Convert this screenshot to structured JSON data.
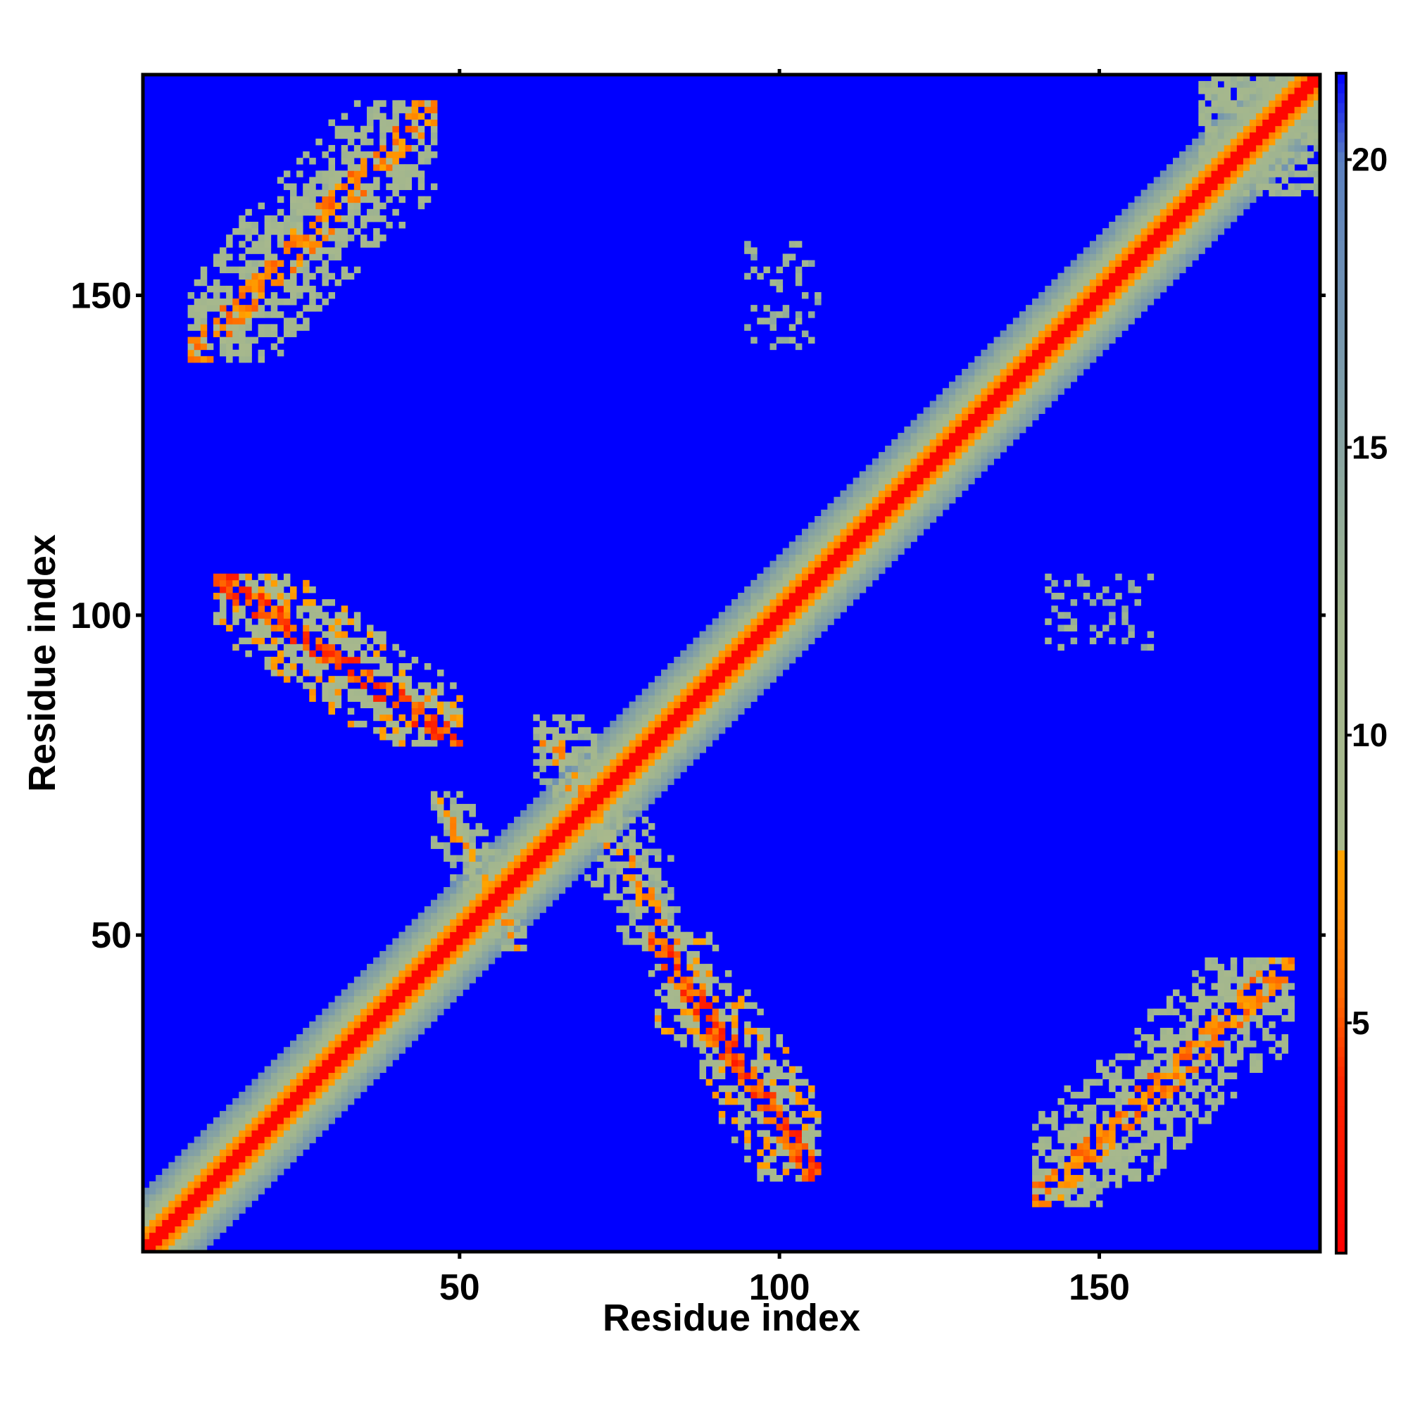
{
  "chart_data": {
    "type": "heatmap",
    "title": "",
    "xlabel": "Residue index",
    "ylabel": "Residue index",
    "n_residues": 184,
    "xlim": [
      1,
      184
    ],
    "ylim": [
      1,
      184
    ],
    "x_ticks": [
      50,
      100,
      150
    ],
    "y_ticks": [
      50,
      100,
      150
    ],
    "colorbar": {
      "range": [
        1,
        21.5
      ],
      "ticks": [
        5,
        10,
        15,
        20
      ],
      "stops": [
        {
          "value": 1,
          "color": "#ff0000"
        },
        {
          "value": 4,
          "color": "#ff2600"
        },
        {
          "value": 5.5,
          "color": "#ff6a00"
        },
        {
          "value": 8,
          "color": "#ffa500"
        },
        {
          "value": 8.01,
          "color": "#a9b98c"
        },
        {
          "value": 12,
          "color": "#a2b68e"
        },
        {
          "value": 16,
          "color": "#7f9ea8"
        },
        {
          "value": 20,
          "color": "#5a7fc0"
        },
        {
          "value": 21.5,
          "color": "#0000ff"
        }
      ]
    },
    "background_value": 21.5,
    "diagonal_band": {
      "core_halfwidth": 1.2,
      "mid_halfwidth": 3.5,
      "outer_halfwidth": 9
    },
    "contact_regions": [
      {
        "name": "N-C terminal (upper-left)",
        "x_range": [
          8,
          46
        ],
        "y_range": [
          140,
          180
        ],
        "orientation": "parallel",
        "mean_distance": 11
      },
      {
        "name": "N-C terminal (lower-right)",
        "x_range": [
          140,
          180
        ],
        "y_range": [
          8,
          46
        ],
        "orientation": "parallel",
        "mean_distance": 11
      },
      {
        "name": "anti-parallel upper-left",
        "x_range": [
          12,
          50
        ],
        "y_range": [
          80,
          106
        ],
        "orientation": "antiparallel",
        "mean_distance": 9
      },
      {
        "name": "anti-parallel lower-right",
        "x_range": [
          80,
          106
        ],
        "y_range": [
          12,
          50
        ],
        "orientation": "antiparallel",
        "mean_distance": 9
      },
      {
        "name": "cross region 1",
        "x_range": [
          46,
          60
        ],
        "y_range": [
          48,
          72
        ],
        "orientation": "antiparallel",
        "mean_distance": 12
      },
      {
        "name": "cross region 2",
        "x_range": [
          62,
          84
        ],
        "y_range": [
          48,
          84
        ],
        "orientation": "antiparallel",
        "mean_distance": 12
      },
      {
        "name": "sparse island 1",
        "x_range": [
          95,
          106
        ],
        "y_range": [
          142,
          158
        ],
        "orientation": "scatter",
        "mean_distance": 13
      },
      {
        "name": "sparse island 2",
        "x_range": [
          142,
          158
        ],
        "y_range": [
          95,
          106
        ],
        "orientation": "scatter",
        "mean_distance": 13
      },
      {
        "name": "C terminal block",
        "x_range": [
          166,
          184
        ],
        "y_range": [
          166,
          184
        ],
        "orientation": "block",
        "mean_distance": 12
      }
    ],
    "grid": false,
    "legend": "colorbar-right"
  }
}
